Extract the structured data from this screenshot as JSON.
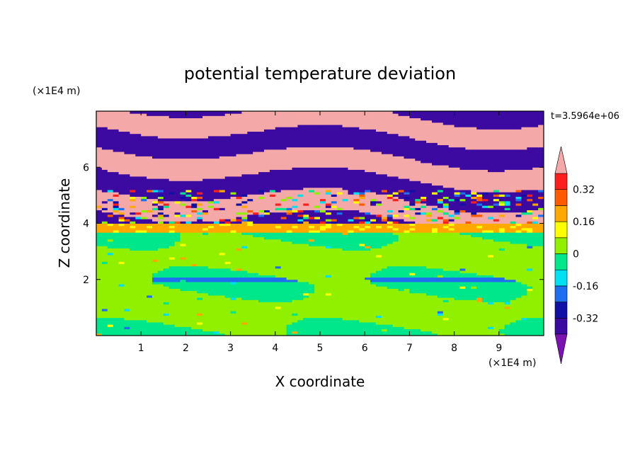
{
  "chart_data": {
    "type": "heatmap",
    "title": "potential temperature deviation",
    "xlabel": "X coordinate",
    "ylabel": "Z coordinate",
    "x_unit": "(×1E4 m)",
    "y_unit": "(×1E4 m)",
    "time_label": "t=3.5964e+06",
    "xlim": [
      0,
      10
    ],
    "ylim": [
      0,
      8
    ],
    "x_ticks": [
      1,
      2,
      3,
      4,
      5,
      6,
      7,
      8,
      9
    ],
    "y_ticks": [
      2,
      4,
      6
    ],
    "grid": false,
    "colorbar": {
      "levels": [
        -0.4,
        -0.32,
        -0.24,
        -0.16,
        -0.08,
        0,
        0.08,
        0.16,
        0.24,
        0.32,
        0.4
      ],
      "colors": [
        "#7a12b4",
        "#3c0aa0",
        "#1010a6",
        "#1e6ef0",
        "#00e0f0",
        "#00e68a",
        "#90f000",
        "#ffff00",
        "#ffa800",
        "#ff5a00",
        "#ff1e1e",
        "#f5a8a8"
      ],
      "tick_labels": [
        "0.32",
        "0.16",
        "0",
        "-0.16",
        "-0.32"
      ],
      "extend": "both"
    },
    "layers": [
      {
        "z_range": [
          0,
          1.9
        ],
        "dominant_value": 0.04,
        "secondary_value": -0.04,
        "description_level": "mixed green"
      },
      {
        "z_range": [
          1.9,
          2.05
        ],
        "dominant_value": 0.0,
        "secondary_value": -0.2,
        "description_level": "thin blue interface"
      },
      {
        "z_range": [
          2.05,
          3.7
        ],
        "dominant_value": 0.04,
        "secondary_value": -0.04,
        "description_level": "banded green"
      },
      {
        "z_range": [
          3.7,
          4.0
        ],
        "dominant_value": 0.16,
        "secondary_value": 0.12,
        "description_level": "yellow"
      },
      {
        "z_range": [
          4.0,
          8.0
        ],
        "dominant_value": 0.4,
        "secondary_value": -0.4,
        "description_level": "alternating pink/purple bands"
      }
    ]
  }
}
